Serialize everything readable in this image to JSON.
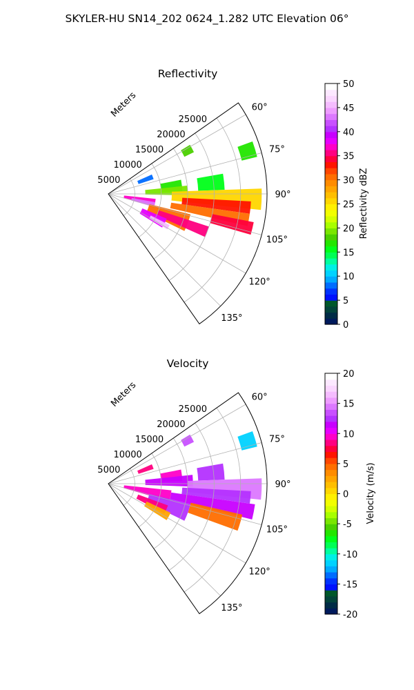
{
  "figure_title": "SKYLER-HU  SN14_202  0624_1.282 UTC Elevation 06°",
  "chart_data": [
    {
      "type": "heatmap",
      "projection": "polar-sector",
      "title": "Reflectivity",
      "range_label": "Meters",
      "range_ticks": [
        5000,
        10000,
        15000,
        20000,
        25000
      ],
      "range_max": 30000,
      "azimuth_range_deg": [
        55,
        145
      ],
      "azimuth_ticks": [
        "60°",
        "75°",
        "90°",
        "105°",
        "120°",
        "135°"
      ],
      "grid": true,
      "colorbar": {
        "label": "Reflectivity dBZ",
        "min": 0,
        "max": 50,
        "ticks": [
          0,
          5,
          10,
          15,
          20,
          25,
          30,
          35,
          40,
          45,
          50
        ],
        "colors": [
          "#001a5c",
          "#002b46",
          "#02433a",
          "#00572a",
          "#0011ff",
          "#0033ff",
          "#006cff",
          "#00aaff",
          "#00d2ff",
          "#00f0e6",
          "#00ff9e",
          "#00ff55",
          "#00ff19",
          "#22e600",
          "#4bd000",
          "#7ae600",
          "#a8ff00",
          "#d4ff00",
          "#f2ff00",
          "#fff000",
          "#ffd600",
          "#ffbe00",
          "#ffa500",
          "#ff8c00",
          "#ff6e00",
          "#ff4600",
          "#ff1400",
          "#ff003c",
          "#ff0080",
          "#ff00c8",
          "#e600ff",
          "#c800ff",
          "#b432ff",
          "#c850ff",
          "#dc78ff",
          "#ee9cff",
          "#f5bcff",
          "#fad6ff",
          "#fce8ff",
          "#ffffff"
        ]
      },
      "echo_regions": [
        {
          "az": [
            59,
            64
          ],
          "r": [
            16000,
            18000
          ],
          "value": 18
        },
        {
          "az": [
            70,
            76
          ],
          "r": [
            26000,
            29000
          ],
          "value": 17
        },
        {
          "az": [
            79,
            88
          ],
          "r": [
            10000,
            14000
          ],
          "value": 17
        },
        {
          "az": [
            80,
            88
          ],
          "r": [
            17000,
            22000
          ],
          "value": 16
        },
        {
          "az": [
            84,
            91
          ],
          "r": [
            7000,
            15000
          ],
          "value": 19
        },
        {
          "az": [
            88,
            96
          ],
          "r": [
            12000,
            29000
          ],
          "value": 26
        },
        {
          "az": [
            93,
            98
          ],
          "r": [
            14000,
            27000
          ],
          "value": 33
        },
        {
          "az": [
            96,
            104
          ],
          "r": [
            3000,
            9000
          ],
          "value": 37
        },
        {
          "az": [
            100,
            106
          ],
          "r": [
            4500,
            9000
          ],
          "value": 43
        },
        {
          "az": [
            98,
            103
          ],
          "r": [
            12000,
            27000
          ],
          "value": 31
        },
        {
          "az": [
            101,
            106
          ],
          "r": [
            20000,
            28000
          ],
          "value": 34
        },
        {
          "az": [
            104,
            116
          ],
          "r": [
            8000,
            16000
          ],
          "value": 30
        },
        {
          "az": [
            108,
            114
          ],
          "r": [
            10000,
            20000
          ],
          "value": 35
        },
        {
          "az": [
            113,
            122
          ],
          "r": [
            7000,
            12000
          ],
          "value": 38
        },
        {
          "az": [
            117,
            121
          ],
          "r": [
            9000,
            13000
          ],
          "value": 45
        },
        {
          "az": [
            66,
            72
          ],
          "r": [
            6000,
            9000
          ],
          "value": 8
        }
      ]
    },
    {
      "type": "heatmap",
      "projection": "polar-sector",
      "title": "Velocity",
      "range_label": "Meters",
      "range_ticks": [
        5000,
        10000,
        15000,
        20000,
        25000
      ],
      "range_max": 30000,
      "azimuth_range_deg": [
        55,
        145
      ],
      "azimuth_ticks": [
        "60°",
        "75°",
        "90°",
        "105°",
        "120°",
        "135°"
      ],
      "grid": true,
      "colorbar": {
        "label": "Velocity (m/s)",
        "min": -20,
        "max": 20,
        "ticks": [
          -20,
          -15,
          -10,
          -5,
          0,
          5,
          10,
          15,
          20
        ],
        "colors": [
          "#001a5c",
          "#002b46",
          "#02433a",
          "#00572a",
          "#0011ff",
          "#0033ff",
          "#006cff",
          "#00aaff",
          "#00d2ff",
          "#00f0e6",
          "#00ff9e",
          "#00ff55",
          "#00ff19",
          "#22e600",
          "#4bd000",
          "#7ae600",
          "#a8ff00",
          "#d4ff00",
          "#f2ff00",
          "#fff000",
          "#ffd600",
          "#ffbe00",
          "#ffa500",
          "#ff8c00",
          "#ff6e00",
          "#ff4600",
          "#ff1400",
          "#ff003c",
          "#ff0080",
          "#ff00c8",
          "#e600ff",
          "#c800ff",
          "#b432ff",
          "#c850ff",
          "#dc78ff",
          "#ee9cff",
          "#f5bcff",
          "#fad6ff",
          "#fce8ff",
          "#ffffff"
        ]
      },
      "echo_regions": [
        {
          "az": [
            59,
            64
          ],
          "r": [
            16000,
            18000
          ],
          "value": 13
        },
        {
          "az": [
            70,
            76
          ],
          "r": [
            26000,
            29000
          ],
          "value": -12
        },
        {
          "az": [
            79,
            88
          ],
          "r": [
            10000,
            14000
          ],
          "value": 9
        },
        {
          "az": [
            80,
            88
          ],
          "r": [
            17000,
            22000
          ],
          "value": 12
        },
        {
          "az": [
            84,
            92
          ],
          "r": [
            7000,
            16000
          ],
          "value": 11
        },
        {
          "az": [
            88,
            96
          ],
          "r": [
            15000,
            29000
          ],
          "value": 14
        },
        {
          "az": [
            93,
            98
          ],
          "r": [
            14000,
            27000
          ],
          "value": 12
        },
        {
          "az": [
            96,
            106
          ],
          "r": [
            3000,
            12000
          ],
          "value": 9
        },
        {
          "az": [
            98,
            104
          ],
          "r": [
            12000,
            28000
          ],
          "value": 11
        },
        {
          "az": [
            103,
            110
          ],
          "r": [
            16000,
            26000
          ],
          "value": 4
        },
        {
          "az": [
            104,
            116
          ],
          "r": [
            8000,
            16000
          ],
          "value": 12
        },
        {
          "az": [
            110,
            118
          ],
          "r": [
            6000,
            12000
          ],
          "value": 8
        },
        {
          "az": [
            115,
            122
          ],
          "r": [
            8000,
            13000
          ],
          "value": 2
        },
        {
          "az": [
            66,
            72
          ],
          "r": [
            6000,
            9000
          ],
          "value": 8
        }
      ]
    }
  ]
}
